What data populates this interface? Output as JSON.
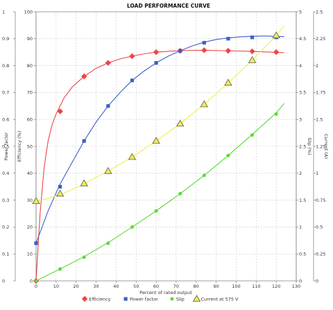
{
  "chart_data": {
    "type": "line",
    "title": "LOAD PERFORMANCE CURVE",
    "xlabel": "Percent of rated output",
    "xlim": [
      0,
      130
    ],
    "x_ticks": [
      0,
      10,
      20,
      30,
      40,
      50,
      60,
      70,
      80,
      90,
      100,
      110,
      120,
      130
    ],
    "left_axis_outer": {
      "label": "Power factor",
      "lim": [
        0,
        1
      ],
      "ticks": [
        "0",
        "0.1",
        "0.2",
        "0.3",
        "0.4",
        "0.5",
        "0.6",
        "0.7",
        "0.8",
        "0.9",
        "1"
      ]
    },
    "left_axis_inner": {
      "label": "Efficiency (%)",
      "lim": [
        0,
        100
      ],
      "ticks": [
        "0",
        "10",
        "20",
        "30",
        "40",
        "50",
        "60",
        "70",
        "80",
        "90",
        "100"
      ]
    },
    "right_axis_inner": {
      "label": "Slip (%)",
      "lim": [
        0,
        5
      ],
      "ticks": [
        "0",
        "0.5",
        "1",
        "1.5",
        "2",
        "2.5",
        "3",
        "3.5",
        "4",
        "4.5",
        "5"
      ]
    },
    "right_axis_outer": {
      "label": "Current (A)",
      "lim": [
        0,
        2.5
      ],
      "ticks": [
        "0",
        "0.25",
        "0.5",
        "0.75",
        "1",
        "1.25",
        "1.5",
        "1.75",
        "2",
        "2.25",
        "2.5"
      ]
    },
    "grid": true,
    "legend_position": "bottom",
    "series": [
      {
        "name": "Efficiency",
        "axis": "left_axis_inner",
        "color": "#ee4444",
        "marker": "diamond",
        "points": [
          [
            0,
            0
          ],
          [
            12,
            63
          ],
          [
            24,
            76
          ],
          [
            36,
            81
          ],
          [
            48,
            83.5
          ],
          [
            60,
            85
          ],
          [
            72,
            85.5
          ],
          [
            84,
            85.7
          ],
          [
            96,
            85.5
          ],
          [
            108,
            85.3
          ],
          [
            120,
            85
          ]
        ],
        "curve": [
          [
            0,
            0
          ],
          [
            2,
            25
          ],
          [
            4,
            42
          ],
          [
            6,
            52
          ],
          [
            8,
            58
          ],
          [
            10,
            62
          ],
          [
            14,
            68
          ],
          [
            18,
            72
          ],
          [
            24,
            76
          ],
          [
            30,
            79
          ],
          [
            36,
            81
          ],
          [
            42,
            82.5
          ],
          [
            48,
            83.5
          ],
          [
            55,
            84.5
          ],
          [
            60,
            85
          ],
          [
            72,
            85.6
          ],
          [
            84,
            85.7
          ],
          [
            96,
            85.5
          ],
          [
            108,
            85.3
          ],
          [
            124,
            84.8
          ]
        ]
      },
      {
        "name": "Power factor",
        "axis": "left_axis_outer",
        "color": "#3b5fc4",
        "marker": "square",
        "points": [
          [
            0,
            0.14
          ],
          [
            12,
            0.35
          ],
          [
            24,
            0.52
          ],
          [
            36,
            0.65
          ],
          [
            48,
            0.745
          ],
          [
            60,
            0.81
          ],
          [
            72,
            0.855
          ],
          [
            84,
            0.885
          ],
          [
            96,
            0.9
          ],
          [
            108,
            0.905
          ],
          [
            120,
            0.905
          ]
        ],
        "curve": [
          [
            0,
            0.14
          ],
          [
            6,
            0.26
          ],
          [
            12,
            0.36
          ],
          [
            18,
            0.44
          ],
          [
            24,
            0.52
          ],
          [
            30,
            0.59
          ],
          [
            36,
            0.65
          ],
          [
            42,
            0.7
          ],
          [
            48,
            0.745
          ],
          [
            54,
            0.78
          ],
          [
            60,
            0.81
          ],
          [
            66,
            0.835
          ],
          [
            72,
            0.855
          ],
          [
            78,
            0.873
          ],
          [
            84,
            0.887
          ],
          [
            90,
            0.897
          ],
          [
            96,
            0.903
          ],
          [
            102,
            0.907
          ],
          [
            108,
            0.909
          ],
          [
            114,
            0.91
          ],
          [
            124,
            0.908
          ]
        ]
      },
      {
        "name": "Slip",
        "axis": "right_axis_inner",
        "color": "#55dd33",
        "marker": "circle",
        "points": [
          [
            0,
            0
          ],
          [
            12,
            0.22
          ],
          [
            24,
            0.44
          ],
          [
            36,
            0.7
          ],
          [
            48,
            1.0
          ],
          [
            60,
            1.3
          ],
          [
            72,
            1.62
          ],
          [
            84,
            1.96
          ],
          [
            96,
            2.33
          ],
          [
            108,
            2.71
          ],
          [
            120,
            3.1
          ]
        ],
        "curve": [
          [
            0,
            0
          ],
          [
            12,
            0.22
          ],
          [
            24,
            0.45
          ],
          [
            36,
            0.71
          ],
          [
            48,
            1.0
          ],
          [
            60,
            1.3
          ],
          [
            72,
            1.62
          ],
          [
            84,
            1.96
          ],
          [
            96,
            2.33
          ],
          [
            108,
            2.72
          ],
          [
            120,
            3.12
          ],
          [
            124,
            3.3
          ]
        ]
      },
      {
        "name": "Current at 575 V",
        "axis": "right_axis_outer",
        "color": "#eeee55",
        "marker": "triangle",
        "points": [
          [
            0,
            0.74
          ],
          [
            12,
            0.81
          ],
          [
            24,
            0.905
          ],
          [
            36,
            1.02
          ],
          [
            48,
            1.15
          ],
          [
            60,
            1.3
          ],
          [
            72,
            1.46
          ],
          [
            84,
            1.64
          ],
          [
            96,
            1.84
          ],
          [
            108,
            2.05
          ],
          [
            120,
            2.28
          ]
        ],
        "curve": [
          [
            0,
            0.735
          ],
          [
            12,
            0.8
          ],
          [
            24,
            0.9
          ],
          [
            36,
            1.02
          ],
          [
            48,
            1.15
          ],
          [
            60,
            1.3
          ],
          [
            72,
            1.46
          ],
          [
            84,
            1.64
          ],
          [
            96,
            1.84
          ],
          [
            108,
            2.05
          ],
          [
            120,
            2.28
          ],
          [
            124,
            2.37
          ]
        ]
      }
    ]
  }
}
